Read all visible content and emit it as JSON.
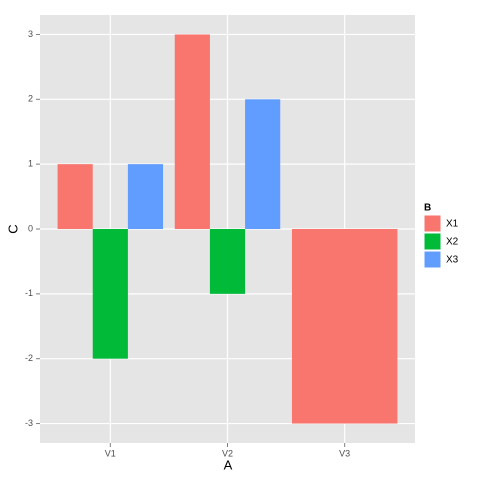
{
  "chart_data": {
    "type": "bar",
    "categories": [
      "V1",
      "V2",
      "V3"
    ],
    "series": [
      {
        "name": "X1",
        "color": "#f8766d",
        "values": [
          1,
          3,
          -3
        ]
      },
      {
        "name": "X2",
        "color": "#00ba38",
        "values": [
          -2,
          -1,
          null
        ]
      },
      {
        "name": "X3",
        "color": "#619cff",
        "values": [
          1,
          2,
          null
        ]
      }
    ],
    "x_label": "A",
    "y_label": "C",
    "legend_title": "B",
    "ylim": [
      -3.3,
      3.3
    ],
    "yticks": [
      -3,
      -2,
      -1,
      0,
      1,
      2,
      3
    ],
    "grid": true,
    "legend_position": "right"
  }
}
